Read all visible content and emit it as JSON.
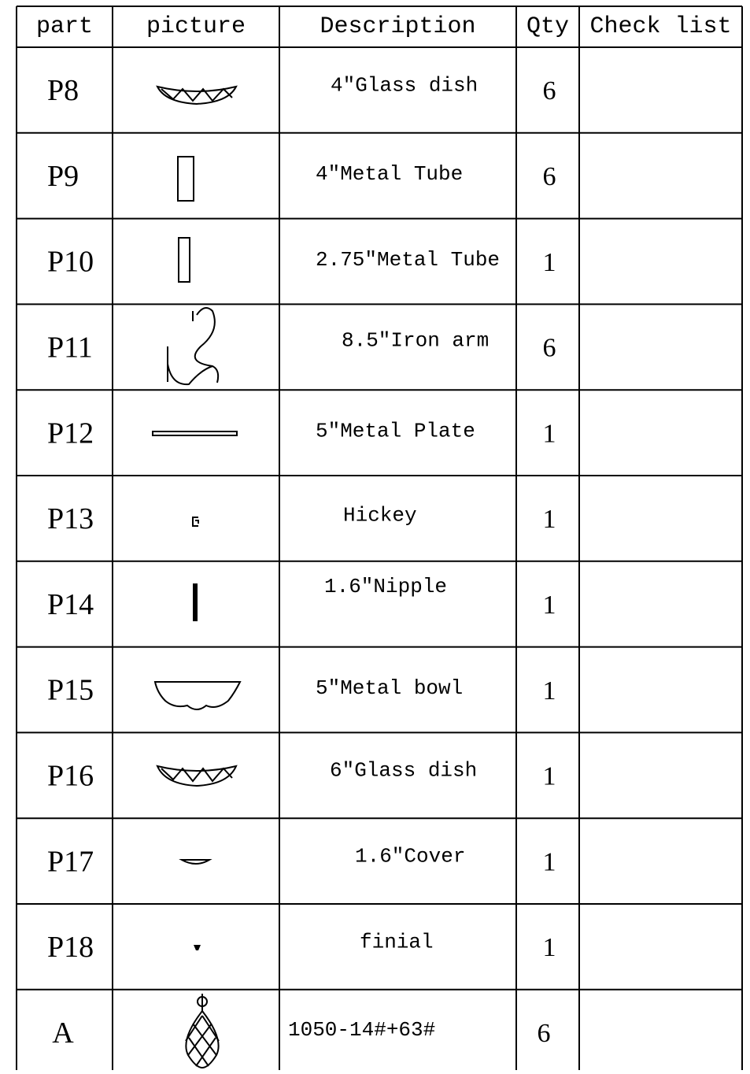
{
  "table": {
    "header": [
      "part",
      "picture",
      "Description",
      "Qty",
      "Check list"
    ],
    "rows": [
      [
        "P8",
        "4″Glass dish",
        6
      ],
      [
        "P9",
        "4″Metal Tube",
        6
      ],
      [
        "P10",
        "2.75″Metal Tube",
        1
      ],
      [
        "P11",
        "8.5″Iron arm",
        6
      ],
      [
        "P12",
        "5″Metal Plate",
        1
      ],
      [
        "P13",
        "Hickey",
        1
      ],
      [
        "P14",
        "1.6″Nipple",
        1
      ],
      [
        "P15",
        "5″Metal bowl",
        1
      ],
      [
        "P16",
        "6″Glass dish",
        1
      ],
      [
        "P17",
        "1.6″Cover",
        1
      ],
      [
        "P18",
        "finial",
        1
      ],
      [
        "A",
        "1050-14#+63#",
        6
      ]
    ]
  }
}
